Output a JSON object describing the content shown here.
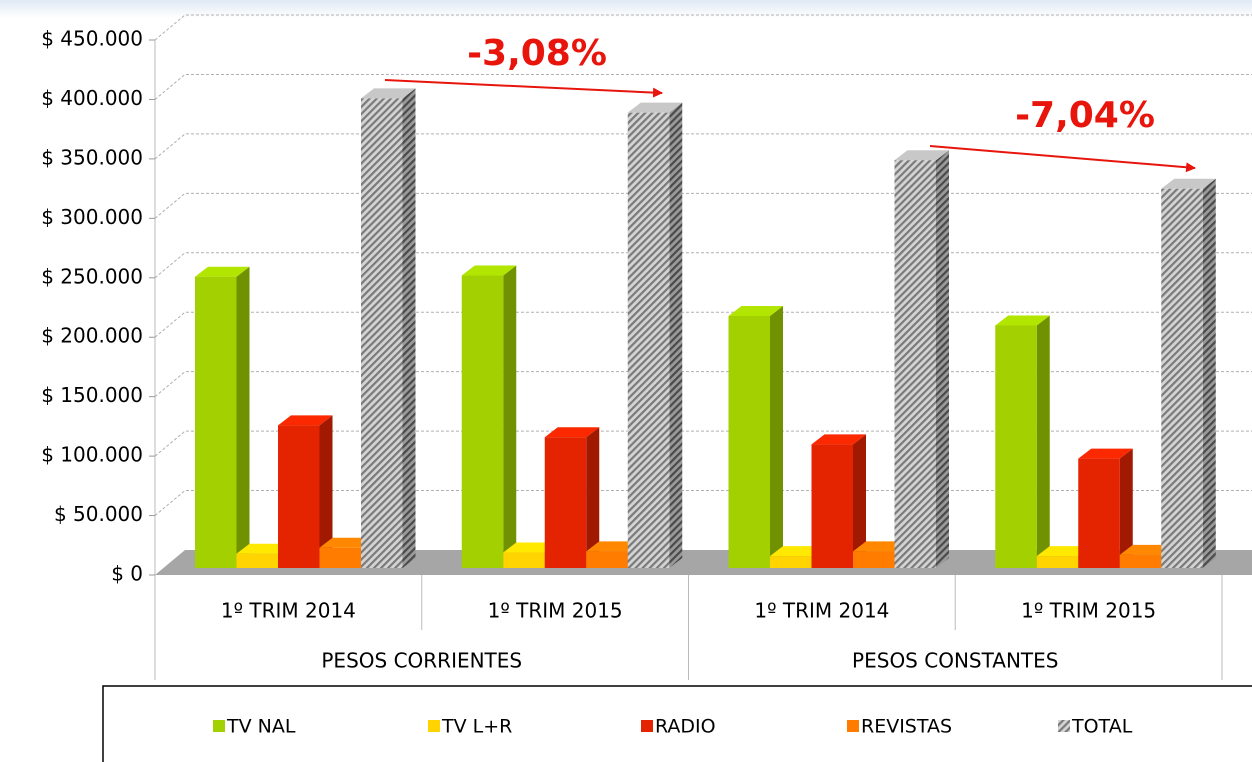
{
  "chart_data": {
    "type": "bar3d",
    "categories": [
      "1º TRIM 2014",
      "1º TRIM 2015",
      "1º TRIM 2014",
      "1º TRIM 2015"
    ],
    "category_groups": [
      "PESOS CORRIENTES",
      "PESOS CONSTANTES"
    ],
    "series": [
      {
        "name": "TV NAL",
        "color": "#a2d000",
        "values": [
          245000,
          246000,
          212000,
          204000
        ]
      },
      {
        "name": "TV L+R",
        "color": "#ffd400",
        "values": [
          12000,
          13000,
          10000,
          10000
        ]
      },
      {
        "name": "RADIO",
        "color": "#e42400",
        "values": [
          120000,
          110000,
          104000,
          92000
        ]
      },
      {
        "name": "REVISTAS",
        "color": "#ff7c00",
        "values": [
          17000,
          14000,
          14000,
          11000
        ]
      },
      {
        "name": "TOTAL",
        "color": "#a8a8a8",
        "pattern": "hatch",
        "values": [
          395000,
          383000,
          343000,
          319000
        ]
      }
    ],
    "ylim": [
      0,
      450000
    ],
    "yticks": [
      {
        "value": 0,
        "label": "$ 0"
      },
      {
        "value": 50000,
        "label": "$ 50.000"
      },
      {
        "value": 100000,
        "label": "$ 100.000"
      },
      {
        "value": 150000,
        "label": "$ 150.000"
      },
      {
        "value": 200000,
        "label": "$ 200.000"
      },
      {
        "value": 250000,
        "label": "$ 250.000"
      },
      {
        "value": 300000,
        "label": "$ 300.000"
      },
      {
        "value": 350000,
        "label": "$ 350.000"
      },
      {
        "value": 400000,
        "label": "$ 400.000"
      },
      {
        "value": 450000,
        "label": "$ 450.000"
      }
    ],
    "grid": true,
    "annotations": [
      {
        "text": "-3,08%"
      },
      {
        "text": "-7,04%"
      }
    ]
  }
}
